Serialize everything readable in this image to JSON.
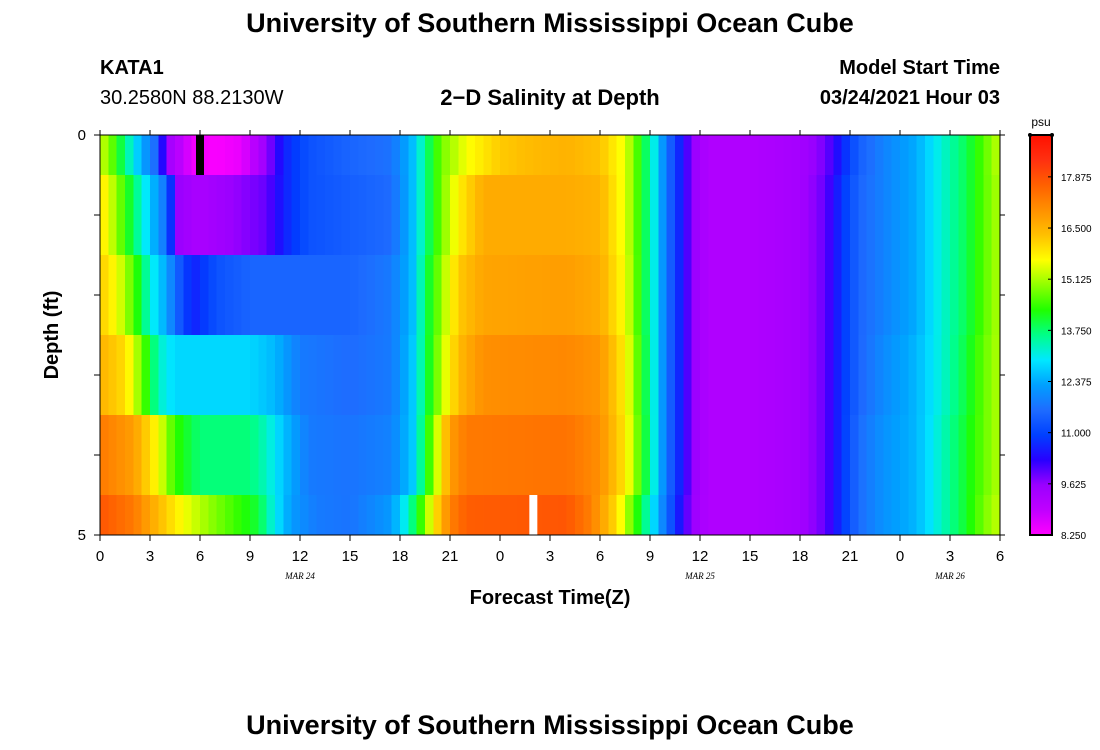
{
  "page": {
    "title": "University of Southern Mississippi Ocean Cube",
    "footer_title": "University of Southern Mississippi Ocean Cube",
    "station_id": "KATA1",
    "coordinates": "30.2580N 88.2130W",
    "plot_title": "2−D Salinity at Depth",
    "model_start_label": "Model Start Time",
    "model_start_value": "03/24/2021 Hour 03"
  },
  "chart_data": {
    "type": "heatmap",
    "title": "2−D Salinity at Depth",
    "xlabel": "Forecast Time(Z)",
    "ylabel": "Depth (ft)",
    "x_hours_range": [
      0,
      54
    ],
    "x_tick_labels": [
      "0",
      "3",
      "6",
      "9",
      "12",
      "15",
      "18",
      "21",
      "0",
      "3",
      "6",
      "9",
      "12",
      "15",
      "18",
      "21",
      "0",
      "3",
      "6"
    ],
    "date_labels": [
      {
        "text": "MAR 24",
        "hour": 12
      },
      {
        "text": "MAR 25",
        "hour": 36
      },
      {
        "text": "MAR 26",
        "hour": 51
      }
    ],
    "y_tick_labels": [
      {
        "text": "0",
        "depth": 0
      },
      {
        "text": "5",
        "depth": 5
      }
    ],
    "depth_range": [
      0,
      5
    ],
    "colorbar": {
      "unit": "psu",
      "min": 8.25,
      "max": 19.0,
      "tick_values": [
        17.875,
        16.5,
        15.125,
        13.75,
        12.375,
        11.0,
        9.625,
        8.25
      ],
      "tick_labels": [
        "17.875",
        "16.500",
        "15.125",
        "13.750",
        "12.375",
        "11.000",
        "9.625",
        "8.250"
      ],
      "colors": [
        "#ff00ff",
        "#c000ff",
        "#9a00ff",
        "#2800ff",
        "#0040ff",
        "#1e6cff",
        "#00a0ff",
        "#00e8ff",
        "#00ff88",
        "#20ff00",
        "#90ff00",
        "#ffff00",
        "#ffc000",
        "#ff9000",
        "#ff6000",
        "#ff3010",
        "#ff1000"
      ]
    },
    "layers": [
      {
        "depth_range": [
          0.0,
          0.5
        ],
        "keyframes": [
          [
            0.0,
            15.3
          ],
          [
            0.5,
            15.0
          ],
          [
            1.0,
            14.3
          ],
          [
            1.7,
            13.4
          ],
          [
            2.5,
            12.4
          ],
          [
            3.3,
            11.6
          ],
          [
            3.8,
            10.2
          ],
          [
            4.2,
            9.4
          ],
          [
            4.8,
            9.0
          ],
          [
            5.4,
            8.6
          ],
          [
            5.8,
            8.4
          ],
          [
            7.0,
            8.3
          ],
          [
            8.5,
            8.5
          ],
          [
            10.0,
            9.6
          ],
          [
            11.0,
            10.6
          ],
          [
            12.5,
            11.2
          ],
          [
            15.0,
            11.5
          ],
          [
            17.5,
            11.7
          ],
          [
            18.8,
            12.6
          ],
          [
            19.5,
            13.6
          ],
          [
            20.5,
            14.8
          ],
          [
            22.0,
            15.6
          ],
          [
            24.0,
            16.2
          ],
          [
            26.0,
            16.4
          ],
          [
            28.0,
            16.5
          ],
          [
            30.0,
            16.3
          ],
          [
            31.5,
            15.5
          ],
          [
            32.5,
            14.2
          ],
          [
            33.3,
            13.0
          ],
          [
            34.0,
            11.7
          ],
          [
            34.8,
            10.6
          ],
          [
            35.6,
            9.6
          ],
          [
            36.5,
            9.2
          ],
          [
            39.0,
            9.2
          ],
          [
            42.0,
            9.4
          ],
          [
            43.5,
            9.8
          ],
          [
            44.5,
            10.6
          ],
          [
            45.5,
            11.4
          ],
          [
            47.0,
            11.9
          ],
          [
            49.0,
            12.4
          ],
          [
            50.5,
            13.2
          ],
          [
            52.0,
            13.9
          ],
          [
            53.0,
            14.6
          ],
          [
            54.0,
            15.3
          ]
        ]
      },
      {
        "depth_range": [
          0.5,
          1.5
        ],
        "keyframes": [
          [
            0.0,
            16.0
          ],
          [
            1.0,
            15.0
          ],
          [
            2.0,
            13.8
          ],
          [
            3.0,
            12.7
          ],
          [
            4.0,
            11.6
          ],
          [
            4.6,
            9.6
          ],
          [
            6.0,
            9.3
          ],
          [
            8.0,
            9.6
          ],
          [
            10.0,
            9.9
          ],
          [
            11.0,
            10.6
          ],
          [
            12.5,
            11.2
          ],
          [
            15.0,
            11.4
          ],
          [
            17.5,
            11.6
          ],
          [
            18.8,
            12.6
          ],
          [
            19.5,
            13.6
          ],
          [
            20.5,
            14.8
          ],
          [
            21.5,
            15.8
          ],
          [
            23.0,
            16.6
          ],
          [
            28.0,
            16.6
          ],
          [
            30.0,
            16.5
          ],
          [
            31.5,
            15.5
          ],
          [
            32.5,
            14.2
          ],
          [
            33.3,
            13.0
          ],
          [
            34.0,
            11.7
          ],
          [
            34.8,
            10.6
          ],
          [
            35.6,
            9.6
          ],
          [
            36.5,
            9.2
          ],
          [
            39.0,
            9.2
          ],
          [
            42.0,
            9.4
          ],
          [
            43.5,
            9.9
          ],
          [
            44.5,
            10.8
          ],
          [
            45.5,
            11.5
          ],
          [
            47.0,
            11.9
          ],
          [
            49.0,
            12.4
          ],
          [
            50.5,
            13.2
          ],
          [
            52.0,
            13.9
          ],
          [
            53.0,
            14.6
          ],
          [
            54.0,
            15.2
          ]
        ]
      },
      {
        "depth_range": [
          1.5,
          2.5
        ],
        "keyframes": [
          [
            0.0,
            16.2
          ],
          [
            1.0,
            15.6
          ],
          [
            2.0,
            14.6
          ],
          [
            3.0,
            13.2
          ],
          [
            4.0,
            12.3
          ],
          [
            5.0,
            11.0
          ],
          [
            5.6,
            10.6
          ],
          [
            7.0,
            11.2
          ],
          [
            9.0,
            11.5
          ],
          [
            15.0,
            11.5
          ],
          [
            17.5,
            11.8
          ],
          [
            18.8,
            12.6
          ],
          [
            19.5,
            13.8
          ],
          [
            20.5,
            15.0
          ],
          [
            21.5,
            16.2
          ],
          [
            23.0,
            16.7
          ],
          [
            28.0,
            16.8
          ],
          [
            30.0,
            16.6
          ],
          [
            31.5,
            15.6
          ],
          [
            32.5,
            14.2
          ],
          [
            33.3,
            13.0
          ],
          [
            34.0,
            11.7
          ],
          [
            34.8,
            10.6
          ],
          [
            35.6,
            9.6
          ],
          [
            36.5,
            9.2
          ],
          [
            39.0,
            9.2
          ],
          [
            42.0,
            9.4
          ],
          [
            43.5,
            9.9
          ],
          [
            44.5,
            10.8
          ],
          [
            45.5,
            11.5
          ],
          [
            47.0,
            11.9
          ],
          [
            49.0,
            12.4
          ],
          [
            50.5,
            13.2
          ],
          [
            52.0,
            13.9
          ],
          [
            53.0,
            14.6
          ],
          [
            54.0,
            15.2
          ]
        ]
      },
      {
        "depth_range": [
          2.5,
          3.5
        ],
        "keyframes": [
          [
            0.0,
            16.5
          ],
          [
            1.5,
            16.0
          ],
          [
            2.5,
            14.8
          ],
          [
            3.5,
            13.3
          ],
          [
            4.5,
            12.8
          ],
          [
            6.0,
            12.8
          ],
          [
            9.0,
            12.8
          ],
          [
            10.5,
            12.5
          ],
          [
            12.0,
            11.8
          ],
          [
            15.0,
            11.6
          ],
          [
            17.5,
            11.8
          ],
          [
            18.8,
            12.7
          ],
          [
            19.5,
            13.8
          ],
          [
            20.5,
            15.2
          ],
          [
            21.5,
            16.4
          ],
          [
            23.0,
            17.0
          ],
          [
            28.0,
            17.1
          ],
          [
            30.0,
            16.9
          ],
          [
            31.5,
            15.8
          ],
          [
            32.5,
            14.3
          ],
          [
            33.3,
            13.0
          ],
          [
            34.0,
            11.7
          ],
          [
            34.8,
            10.6
          ],
          [
            35.6,
            9.6
          ],
          [
            36.5,
            9.2
          ],
          [
            39.0,
            9.2
          ],
          [
            42.0,
            9.4
          ],
          [
            43.5,
            9.9
          ],
          [
            44.5,
            10.8
          ],
          [
            45.5,
            11.5
          ],
          [
            47.0,
            12.0
          ],
          [
            49.0,
            12.5
          ],
          [
            50.5,
            13.2
          ],
          [
            52.0,
            14.0
          ],
          [
            53.0,
            14.7
          ],
          [
            54.0,
            15.2
          ]
        ]
      },
      {
        "depth_range": [
          3.5,
          4.5
        ],
        "keyframes": [
          [
            0.0,
            17.3
          ],
          [
            2.0,
            16.8
          ],
          [
            3.5,
            15.6
          ],
          [
            4.5,
            14.4
          ],
          [
            6.0,
            13.7
          ],
          [
            9.0,
            13.7
          ],
          [
            10.0,
            13.3
          ],
          [
            11.0,
            12.6
          ],
          [
            12.5,
            11.8
          ],
          [
            15.0,
            11.7
          ],
          [
            17.5,
            11.9
          ],
          [
            18.8,
            12.7
          ],
          [
            19.5,
            14.0
          ],
          [
            20.3,
            15.5
          ],
          [
            21.0,
            16.8
          ],
          [
            22.0,
            17.3
          ],
          [
            28.0,
            17.4
          ],
          [
            30.0,
            17.0
          ],
          [
            31.5,
            15.9
          ],
          [
            32.5,
            14.4
          ],
          [
            33.3,
            13.0
          ],
          [
            34.0,
            11.7
          ],
          [
            34.8,
            10.6
          ],
          [
            35.6,
            9.6
          ],
          [
            36.5,
            9.2
          ],
          [
            39.0,
            9.2
          ],
          [
            42.0,
            9.4
          ],
          [
            43.5,
            9.9
          ],
          [
            44.5,
            10.8
          ],
          [
            45.5,
            11.6
          ],
          [
            47.0,
            12.1
          ],
          [
            49.0,
            12.5
          ],
          [
            50.5,
            13.3
          ],
          [
            52.0,
            14.1
          ],
          [
            53.0,
            14.7
          ],
          [
            54.0,
            15.2
          ]
        ]
      },
      {
        "depth_range": [
          4.5,
          5.0
        ],
        "keyframes": [
          [
            0.0,
            17.8
          ],
          [
            2.0,
            17.3
          ],
          [
            3.5,
            16.4
          ],
          [
            5.0,
            15.6
          ],
          [
            6.5,
            15.0
          ],
          [
            8.0,
            14.5
          ],
          [
            9.5,
            14.0
          ],
          [
            10.5,
            13.0
          ],
          [
            11.5,
            12.2
          ],
          [
            13.0,
            11.8
          ],
          [
            15.0,
            11.7
          ],
          [
            17.5,
            12.2
          ],
          [
            18.5,
            13.3
          ],
          [
            19.3,
            14.5
          ],
          [
            20.0,
            15.8
          ],
          [
            21.0,
            17.2
          ],
          [
            22.0,
            17.7
          ],
          [
            28.0,
            17.8
          ],
          [
            29.5,
            17.2
          ],
          [
            31.0,
            16.0
          ],
          [
            32.0,
            14.6
          ],
          [
            33.0,
            13.2
          ],
          [
            33.8,
            11.9
          ],
          [
            34.6,
            10.7
          ],
          [
            35.5,
            9.6
          ],
          [
            36.5,
            9.2
          ],
          [
            39.0,
            9.2
          ],
          [
            42.0,
            9.4
          ],
          [
            43.5,
            9.9
          ],
          [
            44.5,
            10.8
          ],
          [
            45.5,
            11.6
          ],
          [
            47.0,
            12.1
          ],
          [
            49.0,
            12.5
          ],
          [
            50.5,
            13.3
          ],
          [
            52.0,
            14.1
          ],
          [
            53.0,
            14.8
          ],
          [
            54.0,
            15.3
          ]
        ]
      }
    ],
    "annotations": [
      {
        "type": "marker",
        "color": "#000000",
        "hour": 6.0,
        "depth_range": [
          0.0,
          0.5
        ]
      },
      {
        "type": "marker",
        "color": "#ffffff",
        "hour": 26.0,
        "depth_range": [
          4.5,
          5.0
        ]
      }
    ]
  }
}
